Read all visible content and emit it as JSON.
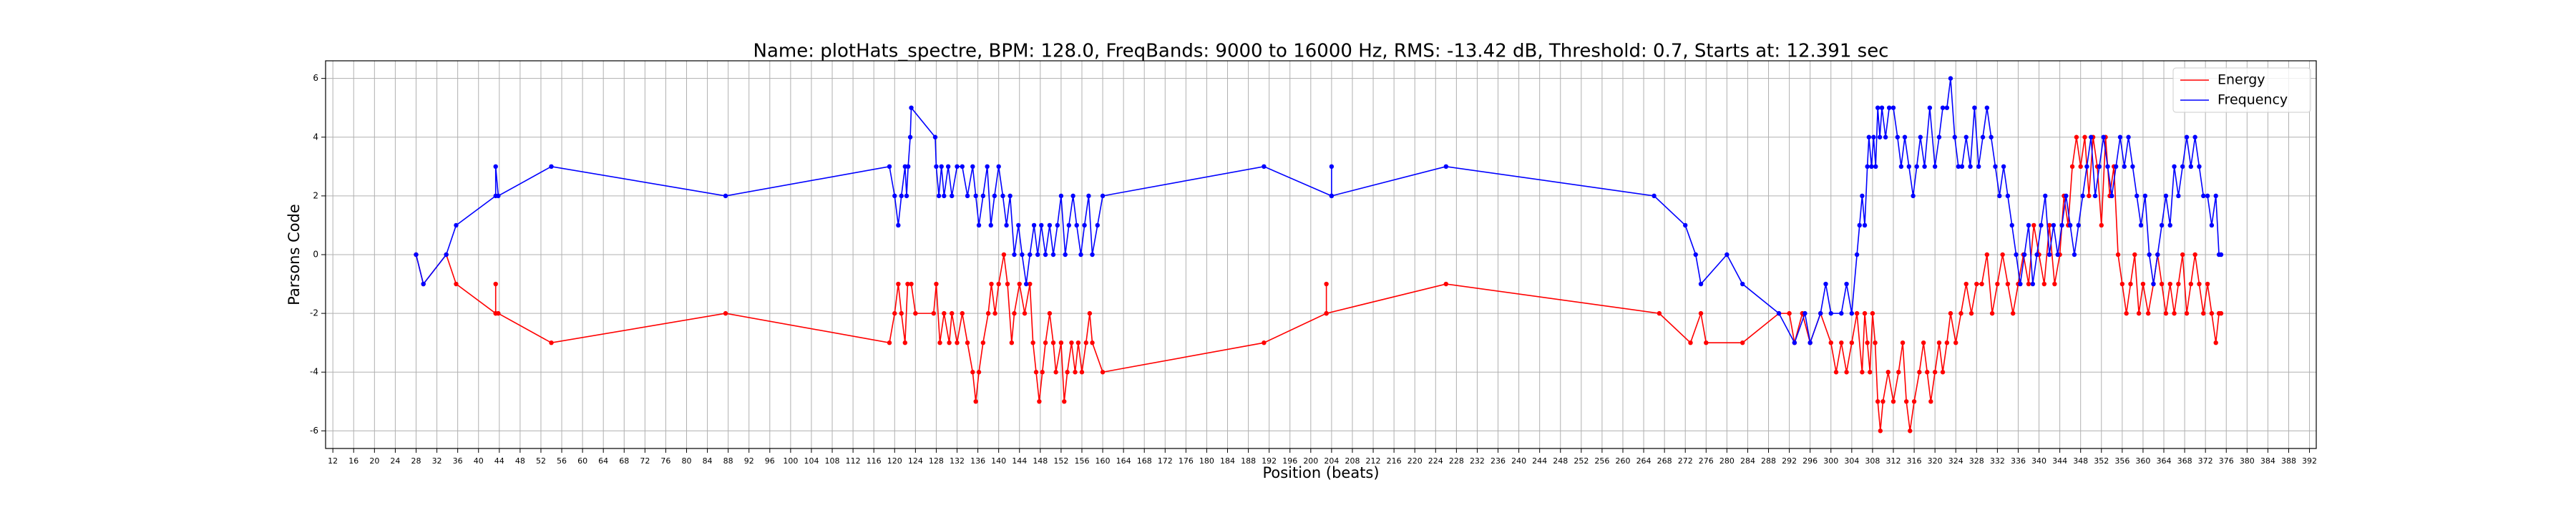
{
  "chart_data": {
    "type": "line",
    "title": "Name: plotHats_spectre, BPM: 128.0, FreqBands: 9000 to 16000 Hz, RMS: -13.42 dB, Threshold: 0.7, Starts at: 12.391 sec",
    "xlabel": "Position (beats)",
    "ylabel": "Parsons Code",
    "xlim": [
      10.6,
      393.3
    ],
    "ylim": [
      -6.6,
      6.6
    ],
    "xticks": [
      12,
      16,
      20,
      24,
      28,
      32,
      36,
      40,
      44,
      48,
      52,
      56,
      60,
      64,
      68,
      72,
      76,
      80,
      84,
      88,
      92,
      96,
      100,
      104,
      108,
      112,
      116,
      120,
      124,
      128,
      132,
      136,
      140,
      144,
      148,
      152,
      156,
      160,
      164,
      168,
      172,
      176,
      180,
      184,
      188,
      192,
      196,
      200,
      204,
      208,
      212,
      216,
      220,
      224,
      228,
      232,
      236,
      240,
      244,
      248,
      252,
      256,
      260,
      264,
      268,
      272,
      276,
      280,
      284,
      288,
      292,
      296,
      300,
      304,
      308,
      312,
      316,
      320,
      324,
      328,
      332,
      336,
      340,
      344,
      348,
      352,
      356,
      360,
      364,
      368,
      372,
      376,
      380,
      384,
      388,
      392
    ],
    "yticks": [
      -6,
      -4,
      -2,
      0,
      2,
      4,
      6
    ],
    "grid": true,
    "legend": "upper right",
    "series": [
      {
        "name": "Energy",
        "color": "#ff0000",
        "x": [
          28,
          29.4,
          33.8,
          35.7,
          43.3,
          43.3,
          43.3,
          43.8,
          54,
          87.5,
          119,
          120,
          120.7,
          121.3,
          122,
          122.5,
          123.2,
          124,
          127.5,
          128,
          128.7,
          129.5,
          130.5,
          131,
          132,
          133,
          134,
          135,
          135.6,
          136.2,
          137,
          138,
          138.6,
          139.3,
          140,
          141,
          141.7,
          142.5,
          143,
          144,
          145,
          146,
          146.6,
          147.2,
          147.8,
          148.4,
          149,
          149.8,
          150.5,
          151,
          152,
          152.6,
          153.2,
          154,
          154.7,
          155.3,
          156,
          156.8,
          157.5,
          158,
          160,
          191,
          203,
          203,
          203,
          226,
          267,
          273,
          275,
          276,
          283,
          290,
          292,
          293,
          294.5,
          296,
          298,
          300,
          301,
          302,
          303,
          304,
          305,
          306,
          306.5,
          307,
          307.5,
          308,
          308.5,
          309,
          309.5,
          310,
          311,
          312,
          313,
          313.8,
          314.5,
          315.2,
          316,
          317,
          317.8,
          318.5,
          319.2,
          320,
          320.8,
          321.5,
          322.3,
          323,
          324,
          325,
          326,
          327,
          328,
          329,
          330,
          331,
          332,
          333,
          334,
          335,
          336,
          337,
          338,
          339,
          340,
          341,
          342,
          343,
          344,
          344.8,
          345.6,
          346.4,
          347.2,
          348,
          348.8,
          349.6,
          350.4,
          351.2,
          352,
          352.8,
          353.6,
          354.4,
          355.2,
          356,
          356.8,
          357.6,
          358.4,
          359.2,
          360,
          361,
          362,
          362.8,
          363.6,
          364.4,
          365.2,
          366,
          366.8,
          367.6,
          368.4,
          369.2,
          370,
          370.8,
          371.6,
          372.4,
          373.2,
          374,
          374.6,
          375
        ],
        "values": [
          0,
          -1,
          0,
          -1,
          -2,
          -1,
          -2,
          -2,
          -3,
          -2,
          -3,
          -2,
          -1,
          -2,
          -3,
          -1,
          -1,
          -2,
          -2,
          -1,
          -3,
          -2,
          -3,
          -2,
          -3,
          -2,
          -3,
          -4,
          -5,
          -4,
          -3,
          -2,
          -1,
          -2,
          -1,
          0,
          -1,
          -3,
          -2,
          -1,
          -2,
          -1,
          -3,
          -4,
          -5,
          -4,
          -3,
          -2,
          -3,
          -4,
          -3,
          -5,
          -4,
          -3,
          -4,
          -3,
          -4,
          -3,
          -2,
          -3,
          -4,
          -3,
          -2,
          -1,
          -2,
          -1,
          -2,
          -3,
          -2,
          -3,
          -3,
          -2,
          -2,
          -3,
          -2,
          -3,
          -2,
          -3,
          -4,
          -3,
          -4,
          -3,
          -2,
          -4,
          -2,
          -3,
          -4,
          -2,
          -3,
          -5,
          -6,
          -5,
          -4,
          -5,
          -4,
          -3,
          -5,
          -6,
          -5,
          -4,
          -3,
          -4,
          -5,
          -4,
          -3,
          -4,
          -3,
          -2,
          -3,
          -2,
          -1,
          -2,
          -1,
          -1,
          0,
          -2,
          -1,
          0,
          -1,
          -2,
          -1,
          0,
          -1,
          1,
          0,
          -1,
          1,
          -1,
          0,
          2,
          1,
          3,
          4,
          3,
          4,
          2,
          4,
          3,
          1,
          4,
          2,
          3,
          0,
          -1,
          -2,
          -1,
          0,
          -2,
          -1,
          -2,
          -1,
          0,
          -1,
          -2,
          -1,
          -2,
          -1,
          0,
          -2,
          -1,
          0,
          -1,
          -2,
          -1,
          -2,
          -3,
          -2,
          -2
        ]
      },
      {
        "name": "Frequency",
        "color": "#0000ff",
        "x": [
          28,
          29.4,
          33.8,
          35.7,
          43.3,
          43.3,
          43.8,
          54,
          87.5,
          119,
          120,
          120.7,
          121.3,
          122,
          122.3,
          122.6,
          123,
          123.2,
          127.8,
          128,
          128.5,
          129,
          129.5,
          130.3,
          131,
          132,
          133,
          134,
          135,
          135.6,
          136.2,
          137,
          137.8,
          138.5,
          139.2,
          140,
          140.8,
          141.5,
          142.2,
          143,
          143.8,
          144.5,
          145.3,
          146,
          146.8,
          147.5,
          148.2,
          149,
          149.8,
          150.5,
          151.3,
          152,
          152.8,
          153.5,
          154.3,
          155,
          155.8,
          156.5,
          157.3,
          158,
          159,
          160,
          191,
          204,
          204,
          204,
          226,
          266,
          272,
          274,
          275,
          280,
          283,
          290,
          293,
          295,
          296,
          298,
          299,
          300,
          302,
          303,
          304,
          305,
          305.5,
          306,
          306.5,
          307,
          307.3,
          307.8,
          308.2,
          308.6,
          309,
          309.4,
          309.8,
          310.5,
          311.2,
          312,
          312.8,
          313.5,
          314.2,
          315,
          315.8,
          316.5,
          317.2,
          318,
          319,
          320,
          320.8,
          321.5,
          322.3,
          323,
          323.8,
          324.5,
          325.2,
          326,
          326.8,
          327.6,
          328.4,
          329.2,
          330,
          330.8,
          331.6,
          332.4,
          333.2,
          334,
          334.8,
          335.6,
          336.4,
          337.2,
          338,
          338.8,
          339.6,
          340.4,
          341.2,
          342,
          342.8,
          343.6,
          344.4,
          345.2,
          346,
          346.8,
          347.6,
          348.4,
          349.2,
          350,
          350.8,
          351.6,
          352.4,
          353.2,
          354,
          354.8,
          355.6,
          356.4,
          357.2,
          358,
          358.8,
          359.6,
          360.4,
          361.2,
          362,
          362.8,
          363.6,
          364.4,
          365.2,
          366,
          366.8,
          367.6,
          368.4,
          369.2,
          370,
          370.8,
          371.6,
          372.4,
          373.2,
          374,
          374.6,
          375
        ],
        "values": [
          0,
          -1,
          0,
          1,
          2,
          3,
          2,
          3,
          2,
          3,
          2,
          1,
          2,
          3,
          2,
          3,
          4,
          5,
          4,
          3,
          2,
          3,
          2,
          3,
          2,
          3,
          3,
          2,
          3,
          2,
          1,
          2,
          3,
          1,
          2,
          3,
          2,
          1,
          2,
          0,
          1,
          0,
          -1,
          0,
          1,
          0,
          1,
          0,
          1,
          0,
          1,
          2,
          0,
          1,
          2,
          1,
          0,
          1,
          2,
          0,
          1,
          2,
          3,
          2,
          3,
          2,
          3,
          2,
          1,
          0,
          -1,
          0,
          -1,
          -2,
          -3,
          -2,
          -3,
          -2,
          -1,
          -2,
          -2,
          -1,
          -2,
          0,
          1,
          2,
          1,
          3,
          4,
          3,
          4,
          3,
          5,
          4,
          5,
          4,
          5,
          5,
          4,
          3,
          4,
          3,
          2,
          3,
          4,
          3,
          5,
          3,
          4,
          5,
          5,
          6,
          4,
          3,
          3,
          4,
          3,
          5,
          3,
          4,
          5,
          4,
          3,
          2,
          3,
          2,
          1,
          0,
          -1,
          0,
          1,
          -1,
          0,
          1,
          2,
          0,
          1,
          0,
          1,
          2,
          1,
          0,
          1,
          2,
          3,
          4,
          2,
          3,
          4,
          3,
          2,
          3,
          4,
          3,
          4,
          3,
          2,
          1,
          2,
          0,
          -1,
          0,
          1,
          2,
          1,
          3,
          2,
          3,
          4,
          3,
          4,
          3,
          2,
          2,
          1,
          2,
          0,
          0
        ]
      }
    ]
  }
}
